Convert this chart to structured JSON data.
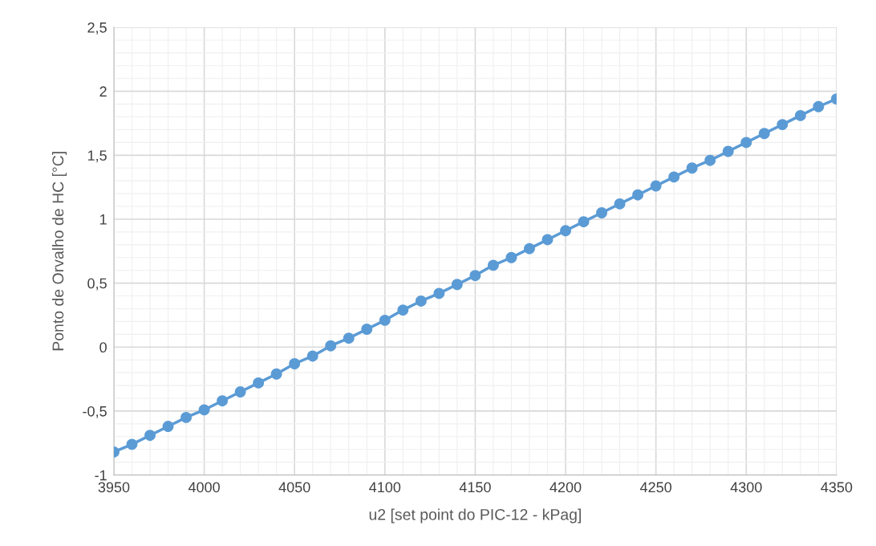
{
  "chart_data": {
    "type": "line",
    "xlabel": "u2 [set point do PIC-12 - kPag]",
    "ylabel": "Ponto de Orvalho de HC [°C]",
    "x": [
      3950,
      3960,
      3970,
      3980,
      3990,
      4000,
      4010,
      4020,
      4030,
      4040,
      4050,
      4060,
      4070,
      4080,
      4090,
      4100,
      4110,
      4120,
      4130,
      4140,
      4150,
      4160,
      4170,
      4180,
      4190,
      4200,
      4210,
      4220,
      4230,
      4240,
      4250,
      4260,
      4270,
      4280,
      4290,
      4300,
      4310,
      4320,
      4330,
      4340,
      4350
    ],
    "series": [
      {
        "color": "#5b9bd5",
        "values": [
          -0.82,
          -0.76,
          -0.69,
          -0.62,
          -0.55,
          -0.49,
          -0.42,
          -0.35,
          -0.28,
          -0.21,
          -0.13,
          -0.07,
          0.01,
          0.07,
          0.14,
          0.21,
          0.29,
          0.36,
          0.42,
          0.49,
          0.56,
          0.64,
          0.7,
          0.77,
          0.84,
          0.91,
          0.98,
          1.05,
          1.12,
          1.19,
          1.26,
          1.33,
          1.4,
          1.46,
          1.53,
          1.6,
          1.67,
          1.74,
          1.81,
          1.88,
          1.94
        ]
      }
    ],
    "xlim": [
      3950,
      4350
    ],
    "xticks": [
      3950,
      4000,
      4050,
      4100,
      4150,
      4200,
      4250,
      4300,
      4350
    ],
    "ylim": [
      -1,
      2.5
    ],
    "yticks": [
      -1,
      {
        "value": -0.5,
        "label": "-0,5"
      },
      0,
      {
        "value": 0.5,
        "label": "0,5"
      },
      1,
      {
        "value": 1.5,
        "label": "1,5"
      },
      2,
      {
        "value": 2.5,
        "label": "2,5"
      }
    ],
    "grid": true,
    "marker": "circle",
    "line_style": "solid",
    "legend": false
  }
}
